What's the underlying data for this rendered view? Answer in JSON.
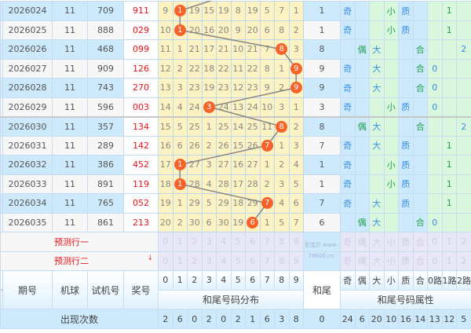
{
  "rows": [
    {
      "period": "2026024",
      "machine": "11",
      "trial": "709",
      "prize": "911",
      "dist": [
        "9",
        "1",
        "19",
        "15",
        "19",
        "8",
        "19",
        "5",
        "7",
        "1"
      ],
      "hit": 1,
      "tail": "1",
      "attrs": [
        "奇",
        "",
        "",
        "小",
        "质",
        "",
        "",
        "1",
        ""
      ]
    },
    {
      "period": "2026025",
      "machine": "11",
      "trial": "888",
      "prize": "029",
      "dist": [
        "10",
        "1",
        "20",
        "16",
        "20",
        "9",
        "20",
        "6",
        "8",
        "2"
      ],
      "hit": 1,
      "tail": "1",
      "attrs": [
        "奇",
        "",
        "",
        "小",
        "质",
        "",
        "",
        "1",
        ""
      ]
    },
    {
      "period": "2026026",
      "machine": "11",
      "trial": "468",
      "prize": "099",
      "dist": [
        "11",
        "1",
        "21",
        "17",
        "21",
        "10",
        "21",
        "7",
        "8",
        "3"
      ],
      "hit": 8,
      "tail": "8",
      "attrs": [
        "",
        "偶",
        "大",
        "",
        "",
        "合",
        "",
        "",
        "2"
      ]
    },
    {
      "period": "2026027",
      "machine": "11",
      "trial": "909",
      "prize": "126",
      "dist": [
        "12",
        "2",
        "22",
        "18",
        "22",
        "11",
        "22",
        "8",
        "1",
        "9"
      ],
      "hit": 9,
      "tail": "9",
      "attrs": [
        "奇",
        "",
        "大",
        "",
        "",
        "合",
        "0",
        "",
        ""
      ]
    },
    {
      "period": "2026028",
      "machine": "11",
      "trial": "743",
      "prize": "270",
      "dist": [
        "13",
        "3",
        "23",
        "19",
        "23",
        "12",
        "23",
        "9",
        "2",
        "9"
      ],
      "hit": 9,
      "tail": "9",
      "attrs": [
        "奇",
        "",
        "大",
        "",
        "",
        "合",
        "0",
        "",
        ""
      ]
    },
    {
      "period": "2026029",
      "machine": "11",
      "trial": "596",
      "prize": "003",
      "dist": [
        "14",
        "4",
        "24",
        "3",
        "24",
        "13",
        "24",
        "10",
        "3",
        "1"
      ],
      "hit": 3,
      "tail": "3",
      "attrs": [
        "奇",
        "",
        "",
        "小",
        "质",
        "",
        "0",
        "",
        ""
      ]
    },
    {
      "period": "2026030",
      "machine": "11",
      "trial": "357",
      "prize": "134",
      "dist": [
        "15",
        "5",
        "25",
        "1",
        "25",
        "14",
        "25",
        "11",
        "8",
        "2"
      ],
      "hit": 8,
      "tail": "8",
      "attrs": [
        "",
        "偶",
        "大",
        "",
        "",
        "合",
        "",
        "",
        "2"
      ]
    },
    {
      "period": "2026031",
      "machine": "11",
      "trial": "289",
      "prize": "142",
      "dist": [
        "16",
        "6",
        "26",
        "2",
        "26",
        "15",
        "26",
        "7",
        "1",
        "3"
      ],
      "hit": 7,
      "tail": "7",
      "attrs": [
        "奇",
        "",
        "大",
        "",
        "质",
        "",
        "",
        "1",
        ""
      ]
    },
    {
      "period": "2026032",
      "machine": "11",
      "trial": "386",
      "prize": "452",
      "dist": [
        "17",
        "1",
        "27",
        "3",
        "27",
        "16",
        "27",
        "1",
        "2",
        "4"
      ],
      "hit": 1,
      "tail": "1",
      "attrs": [
        "奇",
        "",
        "",
        "小",
        "质",
        "",
        "",
        "1",
        ""
      ]
    },
    {
      "period": "2026033",
      "machine": "11",
      "trial": "891",
      "prize": "119",
      "dist": [
        "18",
        "1",
        "28",
        "4",
        "28",
        "17",
        "28",
        "2",
        "3",
        "5"
      ],
      "hit": 1,
      "tail": "1",
      "attrs": [
        "奇",
        "",
        "",
        "小",
        "质",
        "",
        "",
        "1",
        ""
      ]
    },
    {
      "period": "2026034",
      "machine": "11",
      "trial": "765",
      "prize": "052",
      "dist": [
        "19",
        "1",
        "29",
        "5",
        "29",
        "18",
        "29",
        "7",
        "4",
        "6"
      ],
      "hit": 7,
      "tail": "7",
      "attrs": [
        "奇",
        "",
        "大",
        "",
        "质",
        "",
        "",
        "1",
        ""
      ]
    },
    {
      "period": "2026035",
      "machine": "11",
      "trial": "861",
      "prize": "213",
      "dist": [
        "20",
        "2",
        "30",
        "6",
        "30",
        "19",
        "6",
        "1",
        "5",
        "7"
      ],
      "hit": 6,
      "tail": "6",
      "attrs": [
        "",
        "偶",
        "大",
        "",
        "",
        "合",
        "0",
        "",
        ""
      ]
    }
  ],
  "predict": {
    "row1_label": "预测行一",
    "row2_label": "预测行二",
    "arrow": "↓",
    "digits": [
      "0",
      "1",
      "2",
      "3",
      "4",
      "5",
      "6",
      "7",
      "8",
      "9"
    ],
    "attrs": [
      "奇",
      "偶",
      "大",
      "小",
      "质",
      "合",
      "0",
      "1",
      "2"
    ]
  },
  "header": {
    "partial": "号",
    "period": "期号",
    "machine": "机球",
    "trial": "试机号",
    "prize": "奖号",
    "digits": [
      "0",
      "1",
      "2",
      "3",
      "4",
      "5",
      "6",
      "7",
      "8",
      "9"
    ],
    "dist_title": "和尾号码分布",
    "tail": "和尾",
    "attr_labels": [
      "奇",
      "偶",
      "大",
      "小",
      "质",
      "合",
      "0路",
      "1路",
      "2路"
    ],
    "attr_title": "和尾号码属性"
  },
  "footer": {
    "label": "出现次数",
    "digit_counts": [
      "2",
      "6",
      "0",
      "2",
      "0",
      "2",
      "1",
      "6",
      "3",
      "8"
    ],
    "tail_count": "0",
    "attr_counts": [
      "24",
      "6",
      "20",
      "10",
      "16",
      "14",
      "13",
      "12",
      "5"
    ]
  },
  "colors": {
    "ball": "#f5622a",
    "prize": "#e8141c",
    "attr_blue": "#3a8ee6",
    "attr_green": "#20a048"
  },
  "watermark": "彩宝贝 www.78500.cn"
}
